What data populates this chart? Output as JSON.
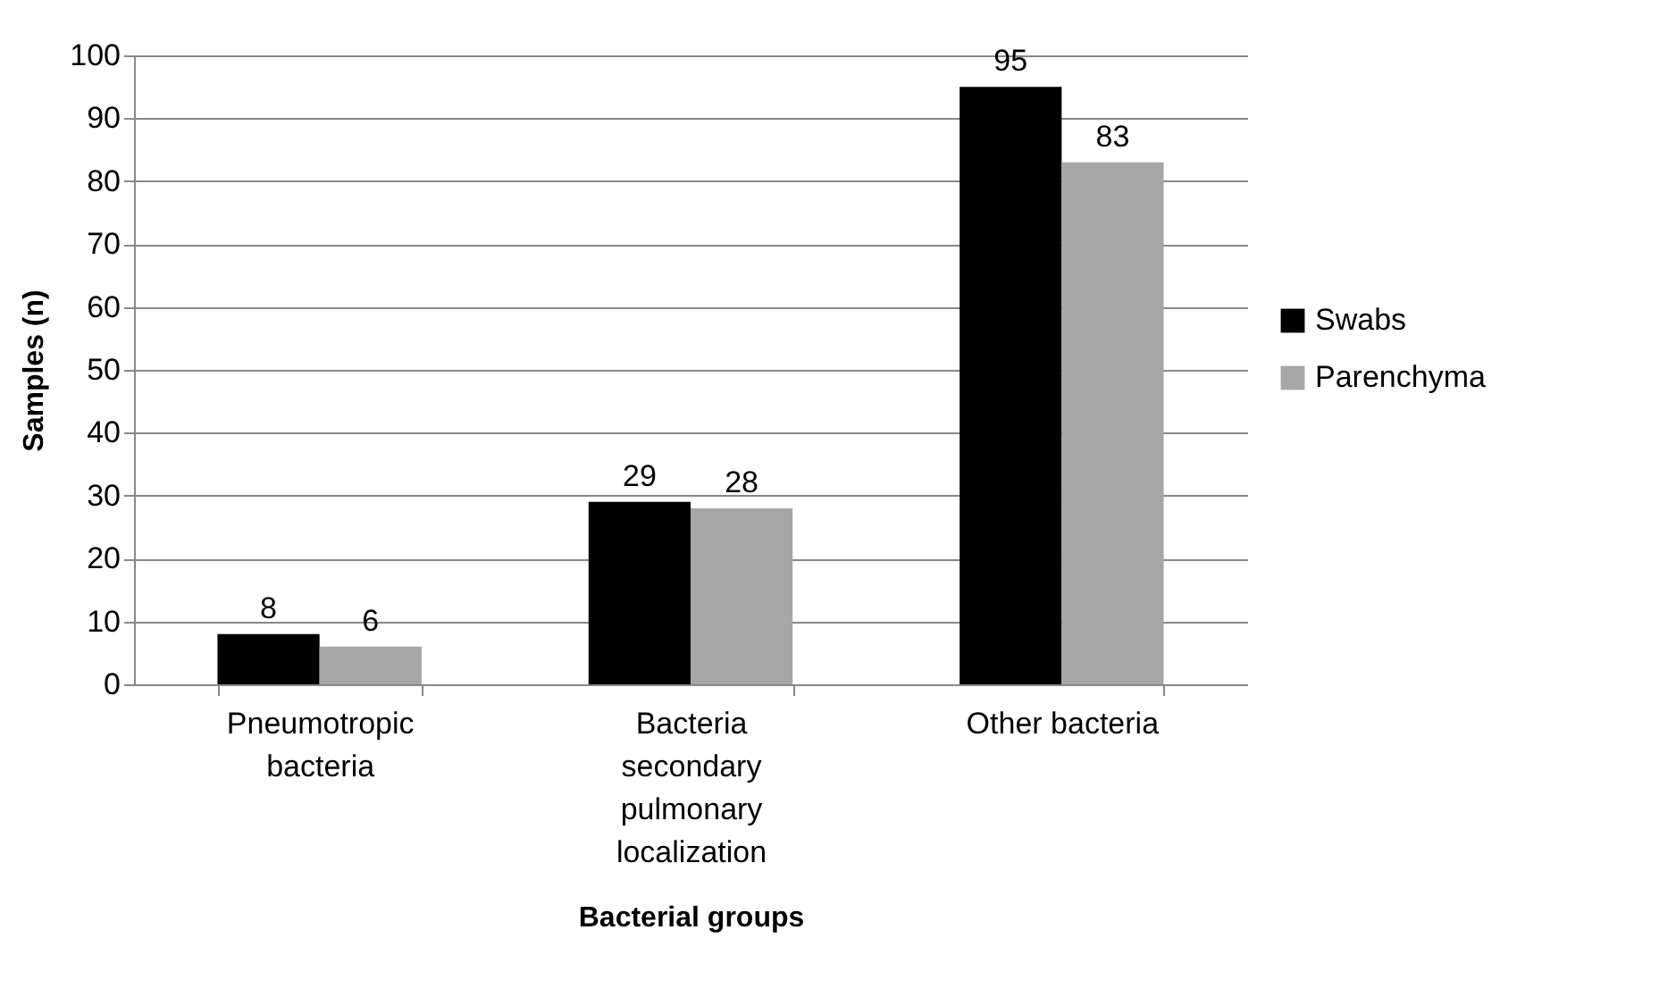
{
  "chart_data": {
    "type": "bar",
    "xlabel": "Bacterial groups",
    "ylabel": "Samples (n)",
    "categories": [
      "Pneumotropic bacteria",
      "Bacteria secondary pulmonary localization",
      "Other bacteria"
    ],
    "series": [
      {
        "name": "Swabs",
        "color": "#000000",
        "values": [
          8,
          29,
          95
        ]
      },
      {
        "name": "Parenchyma",
        "color": "#a6a6a6",
        "values": [
          6,
          28,
          83
        ]
      }
    ],
    "ylim": [
      0,
      100
    ],
    "yticks": [
      0,
      10,
      20,
      30,
      40,
      50,
      60,
      70,
      80,
      90,
      100
    ],
    "grid": "y",
    "legend": "right",
    "data_labels": true
  }
}
